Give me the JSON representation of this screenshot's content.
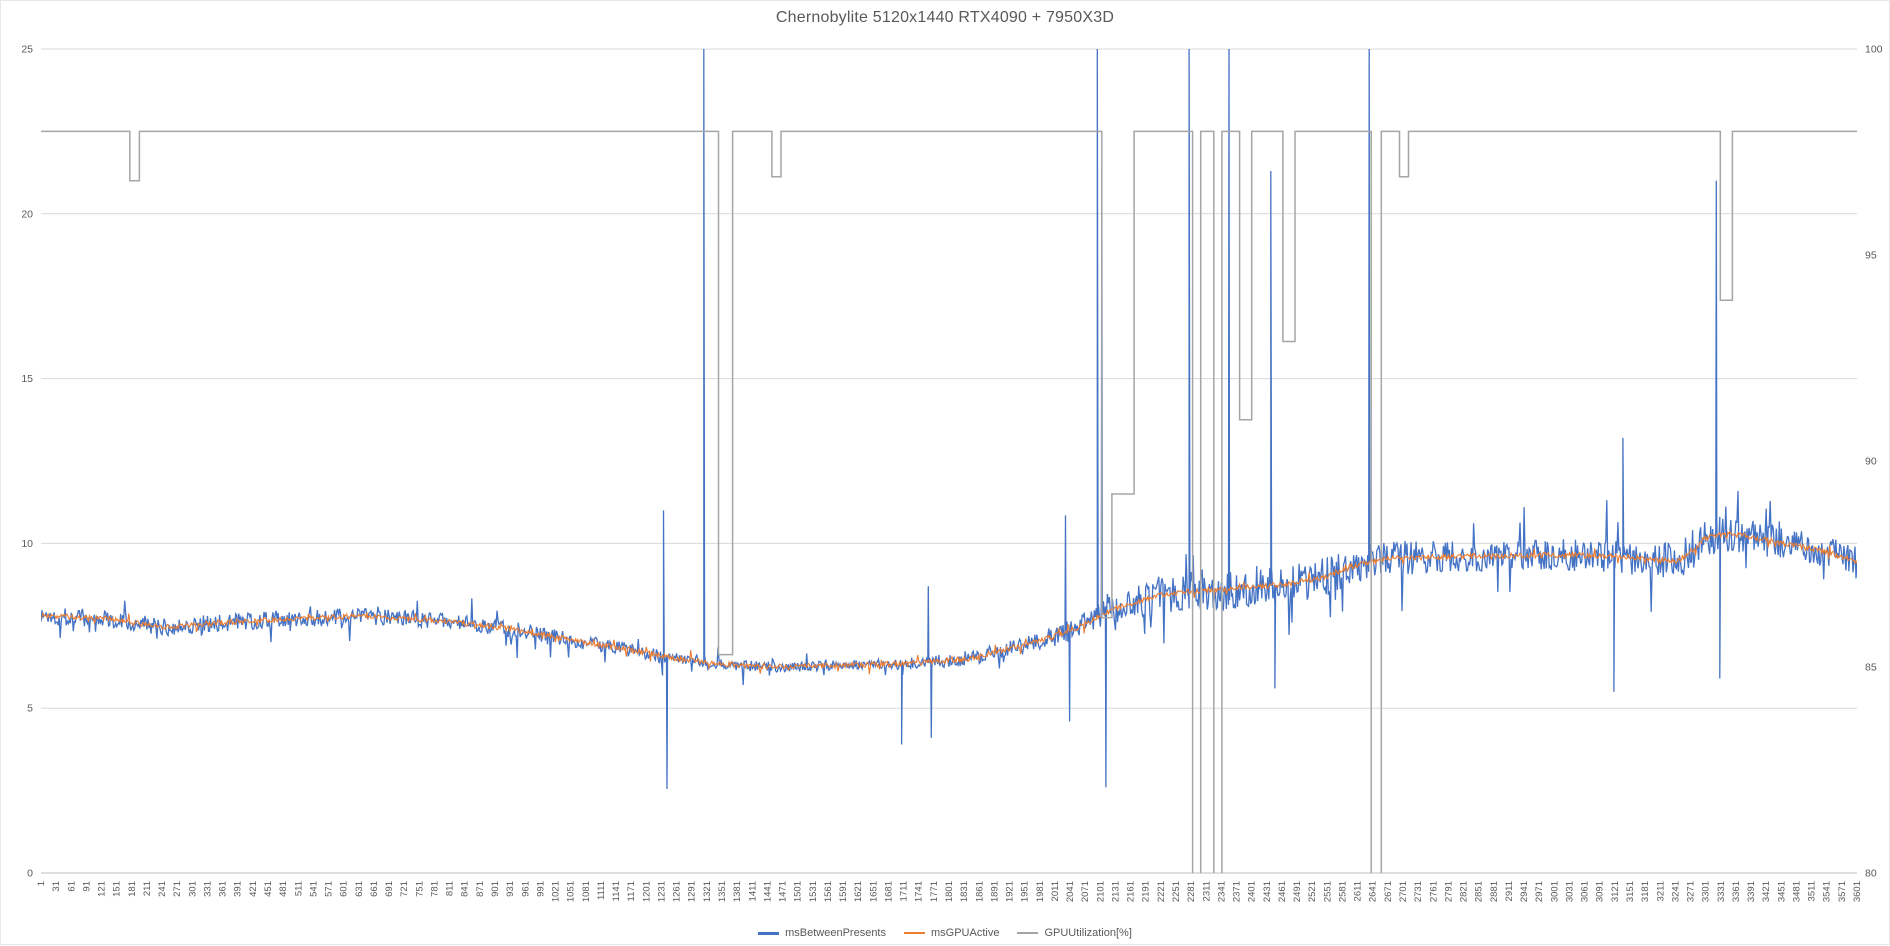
{
  "chart_data": {
    "type": "line",
    "title": "Chernobylite 5120x1440 RTX4090 + 7950X3D",
    "x_range": [
      1,
      3601
    ],
    "x_tick_labels": [
      1,
      31,
      61,
      91,
      121,
      151,
      181,
      211,
      241,
      271,
      301,
      331,
      361,
      391,
      421,
      451,
      481,
      511,
      541,
      571,
      601,
      631,
      661,
      691,
      721,
      751,
      781,
      811,
      841,
      871,
      901,
      931,
      961,
      991,
      1021,
      1051,
      1081,
      1111,
      1141,
      1171,
      1201,
      1231,
      1261,
      1291,
      1321,
      1351,
      1381,
      1411,
      1441,
      1471,
      1501,
      1531,
      1561,
      1591,
      1621,
      1651,
      1681,
      1711,
      1741,
      1771,
      1801,
      1831,
      1861,
      1891,
      1921,
      1951,
      1981,
      2011,
      2041,
      2071,
      2101,
      2131,
      2161,
      2191,
      2221,
      2251,
      2281,
      2311,
      2341,
      2371,
      2401,
      2431,
      2461,
      2491,
      2521,
      2551,
      2581,
      2611,
      2641,
      2671,
      2701,
      2731,
      2761,
      2791,
      2821,
      2851,
      2881,
      2911,
      2941,
      2971,
      3001,
      3031,
      3061,
      3091,
      3121,
      3151,
      3181,
      3211,
      3241,
      3271,
      3301,
      3331,
      3361,
      3391,
      3421,
      3451,
      3481,
      3511,
      3541,
      3571,
      3601
    ],
    "left_axis": {
      "min": 0,
      "max": 25,
      "ticks": [
        0,
        5,
        10,
        15,
        20,
        25
      ]
    },
    "right_axis": {
      "min": 80,
      "max": 100,
      "ticks": [
        80,
        85,
        90,
        95,
        100
      ]
    },
    "grid": "horizontal",
    "legend_position": "bottom",
    "colors": {
      "gridline": "#D9D9D9",
      "axis_line": "#BFBFBF",
      "axis_text": "#595959",
      "title_text": "#595959"
    },
    "series": [
      {
        "name": "msBetweenPresents",
        "axis": "left",
        "color": "#4472C4",
        "style": "noisy-line",
        "baseline": [
          [
            1,
            7.8
          ],
          [
            140,
            7.72
          ],
          [
            240,
            7.45
          ],
          [
            360,
            7.6
          ],
          [
            500,
            7.72
          ],
          [
            645,
            7.8
          ],
          [
            790,
            7.65
          ],
          [
            885,
            7.5
          ],
          [
            980,
            7.28
          ],
          [
            1075,
            7.0
          ],
          [
            1170,
            6.77
          ],
          [
            1265,
            6.5
          ],
          [
            1360,
            6.33
          ],
          [
            1456,
            6.26
          ],
          [
            1600,
            6.3
          ],
          [
            1740,
            6.37
          ],
          [
            1840,
            6.5
          ],
          [
            1930,
            6.85
          ],
          [
            2005,
            7.15
          ],
          [
            2055,
            7.45
          ],
          [
            2125,
            8.0
          ],
          [
            2220,
            8.45
          ],
          [
            2315,
            8.6
          ],
          [
            2430,
            8.7
          ],
          [
            2530,
            8.9
          ],
          [
            2600,
            9.3
          ],
          [
            2670,
            9.55
          ],
          [
            2790,
            9.6
          ],
          [
            3030,
            9.65
          ],
          [
            3130,
            9.6
          ],
          [
            3216,
            9.5
          ],
          [
            3245,
            9.45
          ],
          [
            3270,
            9.75
          ],
          [
            3300,
            10.15
          ],
          [
            3340,
            10.3
          ],
          [
            3390,
            10.2
          ],
          [
            3440,
            10.05
          ],
          [
            3490,
            9.9
          ],
          [
            3550,
            9.7
          ],
          [
            3601,
            9.45
          ]
        ],
        "noise_profile": [
          [
            1,
            0.28
          ],
          [
            900,
            0.25
          ],
          [
            1300,
            0.18
          ],
          [
            1600,
            0.15
          ],
          [
            1900,
            0.22
          ],
          [
            2100,
            0.4
          ],
          [
            2250,
            0.6
          ],
          [
            2400,
            0.65
          ],
          [
            2600,
            0.55
          ],
          [
            2900,
            0.45
          ],
          [
            3100,
            0.5
          ],
          [
            3300,
            0.6
          ],
          [
            3450,
            0.5
          ],
          [
            3601,
            0.45
          ]
        ],
        "spikes": [
          [
            1235,
            11.0
          ],
          [
            1242,
            2.55
          ],
          [
            1315,
            25.0
          ],
          [
            1707,
            3.9
          ],
          [
            1760,
            8.7
          ],
          [
            1766,
            4.1
          ],
          [
            2032,
            10.85
          ],
          [
            2040,
            4.6
          ],
          [
            2095,
            25.0
          ],
          [
            2104,
            21.3
          ],
          [
            2112,
            2.6
          ],
          [
            2277,
            25.0
          ],
          [
            2356,
            25.0
          ],
          [
            2439,
            21.3
          ],
          [
            2447,
            5.6
          ],
          [
            2634,
            25.0
          ],
          [
            3119,
            5.5
          ],
          [
            3137,
            13.2
          ],
          [
            3322,
            21.0
          ],
          [
            3329,
            5.9
          ]
        ]
      },
      {
        "name": "msGPUActive",
        "axis": "left",
        "color": "#ED7D31",
        "style": "smooth-line",
        "baseline": [
          [
            1,
            7.8
          ],
          [
            140,
            7.72
          ],
          [
            240,
            7.45
          ],
          [
            360,
            7.6
          ],
          [
            500,
            7.72
          ],
          [
            645,
            7.8
          ],
          [
            790,
            7.65
          ],
          [
            885,
            7.5
          ],
          [
            980,
            7.28
          ],
          [
            1075,
            7.0
          ],
          [
            1170,
            6.77
          ],
          [
            1265,
            6.5
          ],
          [
            1360,
            6.33
          ],
          [
            1456,
            6.26
          ],
          [
            1600,
            6.3
          ],
          [
            1740,
            6.37
          ],
          [
            1840,
            6.5
          ],
          [
            1930,
            6.85
          ],
          [
            2005,
            7.15
          ],
          [
            2055,
            7.45
          ],
          [
            2125,
            8.0
          ],
          [
            2220,
            8.45
          ],
          [
            2315,
            8.6
          ],
          [
            2430,
            8.7
          ],
          [
            2530,
            8.9
          ],
          [
            2600,
            9.3
          ],
          [
            2670,
            9.55
          ],
          [
            2790,
            9.6
          ],
          [
            3030,
            9.65
          ],
          [
            3130,
            9.6
          ],
          [
            3216,
            9.5
          ],
          [
            3245,
            9.45
          ],
          [
            3270,
            9.75
          ],
          [
            3300,
            10.15
          ],
          [
            3340,
            10.3
          ],
          [
            3390,
            10.2
          ],
          [
            3440,
            10.05
          ],
          [
            3490,
            9.9
          ],
          [
            3550,
            9.7
          ],
          [
            3601,
            9.45
          ]
        ],
        "noise_profile": [
          [
            1,
            0.08
          ],
          [
            3601,
            0.08
          ]
        ],
        "spikes": []
      },
      {
        "name": "GPUUtilization[%]",
        "axis": "right",
        "color": "#A5A5A5",
        "style": "step-line",
        "segments": [
          [
            1,
            177,
            98
          ],
          [
            177,
            196,
            96.8
          ],
          [
            196,
            1344,
            98
          ],
          [
            1344,
            1372,
            85.3
          ],
          [
            1372,
            1450,
            98
          ],
          [
            1450,
            1468,
            96.9
          ],
          [
            1468,
            2104,
            98
          ],
          [
            2104,
            2124,
            86.2
          ],
          [
            2124,
            2168,
            89.2
          ],
          [
            2168,
            2284,
            98
          ],
          [
            2284,
            2300,
            79.8
          ],
          [
            2300,
            2326,
            98
          ],
          [
            2326,
            2342,
            79.8
          ],
          [
            2342,
            2377,
            98
          ],
          [
            2377,
            2401,
            91.0
          ],
          [
            2401,
            2463,
            98
          ],
          [
            2463,
            2487,
            92.9
          ],
          [
            2487,
            2638,
            98
          ],
          [
            2638,
            2658,
            79.8
          ],
          [
            2658,
            2694,
            98
          ],
          [
            2694,
            2712,
            96.9
          ],
          [
            2712,
            3330,
            98
          ],
          [
            3330,
            3354,
            93.9
          ],
          [
            3354,
            3601,
            98
          ]
        ]
      }
    ]
  }
}
